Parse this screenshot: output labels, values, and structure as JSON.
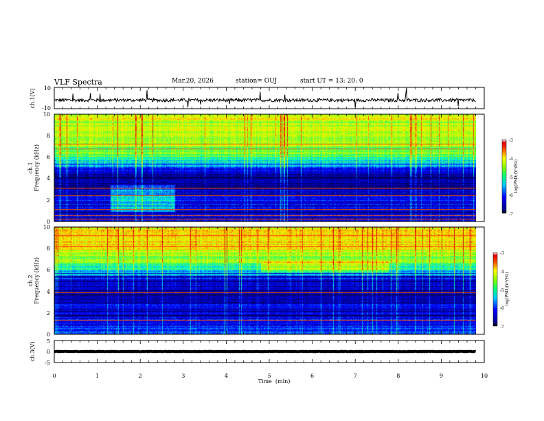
{
  "header": {
    "title": "VLF Spectra",
    "date": "Mar.20, 2026",
    "station": "station= OUJ",
    "start_ut": "start  UT  =   13: 20: 0"
  },
  "colors": {
    "background": "#ffffff",
    "axes": "#000000",
    "waveform": "#000000"
  },
  "chart_data": [
    {
      "type": "line",
      "name": "ch1-waveform",
      "ylabel": "ch.1(V)",
      "ylim": [
        -10,
        10
      ],
      "yticks": [
        "10",
        "-10"
      ],
      "xlim": [
        0,
        10
      ],
      "trace_extent_min": 9.8,
      "mean": -2,
      "noise_amplitude": 1.5
    },
    {
      "type": "heatmap",
      "name": "ch1-spectrogram",
      "ylabel": "ch.1\nFrequency (kHz)",
      "ylim": [
        0,
        10
      ],
      "yticks": [
        "0",
        "2",
        "4",
        "6",
        "8",
        "10"
      ],
      "xlim": [
        0,
        10
      ],
      "data_extent_min": 9.8,
      "colorbar": {
        "label": "log(PSD)(V²/Hz)",
        "range": [
          -7,
          -3
        ],
        "ticks": [
          "-3",
          "-4",
          "-5",
          "-6",
          "-7"
        ]
      },
      "frequency_profile_logpsd": {
        "freq_khz": [
          0,
          0.5,
          1,
          2,
          3,
          3.5,
          4,
          4.5,
          5,
          5.5,
          6,
          7,
          8,
          9,
          10
        ],
        "log_psd": [
          -6.4,
          -6.3,
          -6.4,
          -6.2,
          -6.5,
          -6.6,
          -6.7,
          -6.5,
          -6.0,
          -5.3,
          -4.9,
          -4.5,
          -4.3,
          -4.2,
          -4.2
        ]
      },
      "features": {
        "bright_patch": {
          "t_min": [
            1.3,
            2.8
          ],
          "f_khz": [
            0.8,
            3.4
          ]
        },
        "red_lines_khz": [
          0.2,
          0.5,
          1.1,
          2.4,
          3.1,
          6.8,
          7.2
        ]
      }
    },
    {
      "type": "heatmap",
      "name": "ch2-spectrogram",
      "ylabel": "ch.2\nFrequency (kHz)",
      "ylim": [
        0,
        10
      ],
      "yticks": [
        "0",
        "2",
        "4",
        "6",
        "8",
        "10"
      ],
      "xlim": [
        0,
        10
      ],
      "data_extent_min": 9.8,
      "colorbar": {
        "label": "log(PSD)(V²/Hz)",
        "range": [
          -7,
          -3
        ],
        "ticks": [
          "-3",
          "-4",
          "-5",
          "-6",
          "-7"
        ]
      },
      "frequency_profile_logpsd": {
        "freq_khz": [
          0,
          1,
          2,
          3,
          4,
          5,
          6,
          6.5,
          7,
          8,
          9,
          10
        ],
        "log_psd": [
          -5.8,
          -6.2,
          -6.3,
          -6.4,
          -6.5,
          -6.3,
          -5.2,
          -4.8,
          -4.6,
          -4.1,
          -3.9,
          -3.8
        ]
      },
      "features": {
        "bright_band": {
          "t_min": [
            4.8,
            7.8
          ],
          "f_khz": [
            5.8,
            6.8
          ]
        },
        "red_lines_khz": [
          1.3,
          3.9,
          8.2,
          9.2
        ]
      }
    },
    {
      "type": "line",
      "name": "ch3-waveform",
      "ylabel": "ch.3(V)",
      "ylim": [
        -5,
        5
      ],
      "yticks": [
        "5",
        "0",
        "-5"
      ],
      "xlim": [
        0,
        10
      ],
      "trace_extent_min": 9.8,
      "mean": 0,
      "noise_amplitude": 0.1
    }
  ],
  "x_axis": {
    "label": "Time  (min)",
    "ticks": [
      "0",
      "1",
      "2",
      "3",
      "4",
      "5",
      "6",
      "7",
      "8",
      "9",
      "10"
    ],
    "range": [
      0,
      10
    ]
  }
}
